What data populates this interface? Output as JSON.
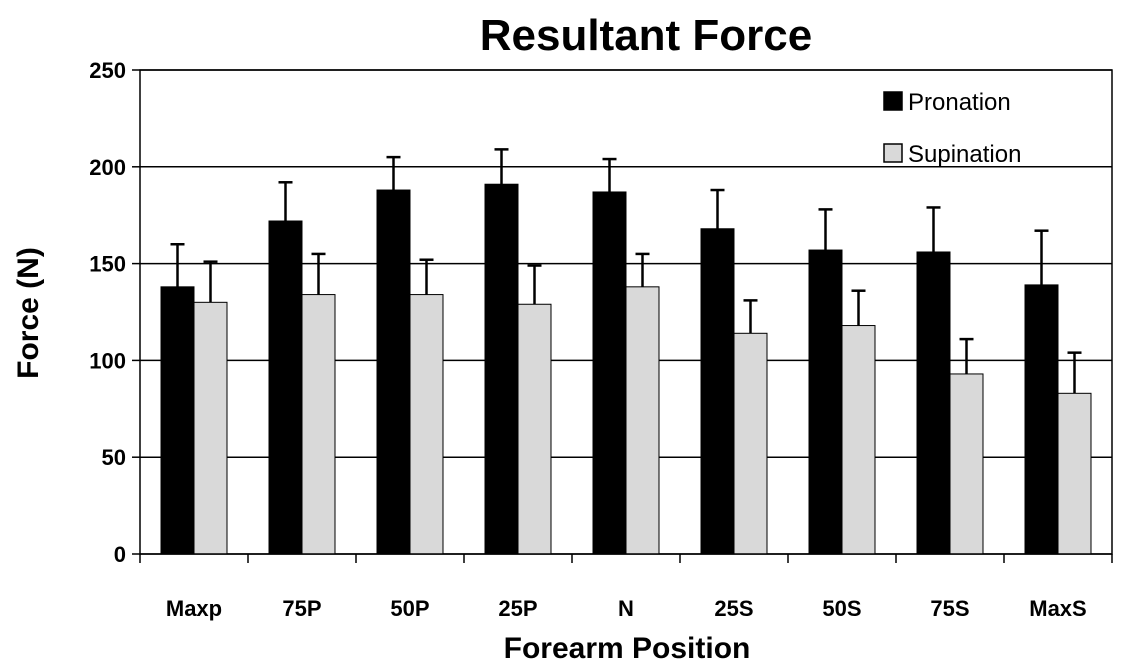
{
  "chart_data": {
    "type": "bar",
    "title": "Resultant Force",
    "xlabel": "Forearm Position",
    "ylabel": "Force (N)",
    "categories": [
      "Maxp",
      "75P",
      "50P",
      "25P",
      "N",
      "25S",
      "50S",
      "75S",
      "MaxS"
    ],
    "ylim": [
      0,
      250
    ],
    "yticks": [
      0,
      50,
      100,
      150,
      200,
      250
    ],
    "grid": true,
    "legend_position": "top-right",
    "error_bars": "upper",
    "series": [
      {
        "name": "Pronation",
        "color": "#000000",
        "values": [
          138,
          172,
          188,
          191,
          187,
          168,
          157,
          156,
          139
        ],
        "errors": [
          22,
          20,
          17,
          18,
          17,
          20,
          21,
          23,
          28
        ]
      },
      {
        "name": "Supination",
        "color": "#d9d9d9",
        "values": [
          130,
          134,
          134,
          129,
          138,
          114,
          118,
          93,
          83
        ],
        "errors": [
          21,
          21,
          18,
          20,
          17,
          17,
          18,
          18,
          21
        ]
      }
    ]
  }
}
